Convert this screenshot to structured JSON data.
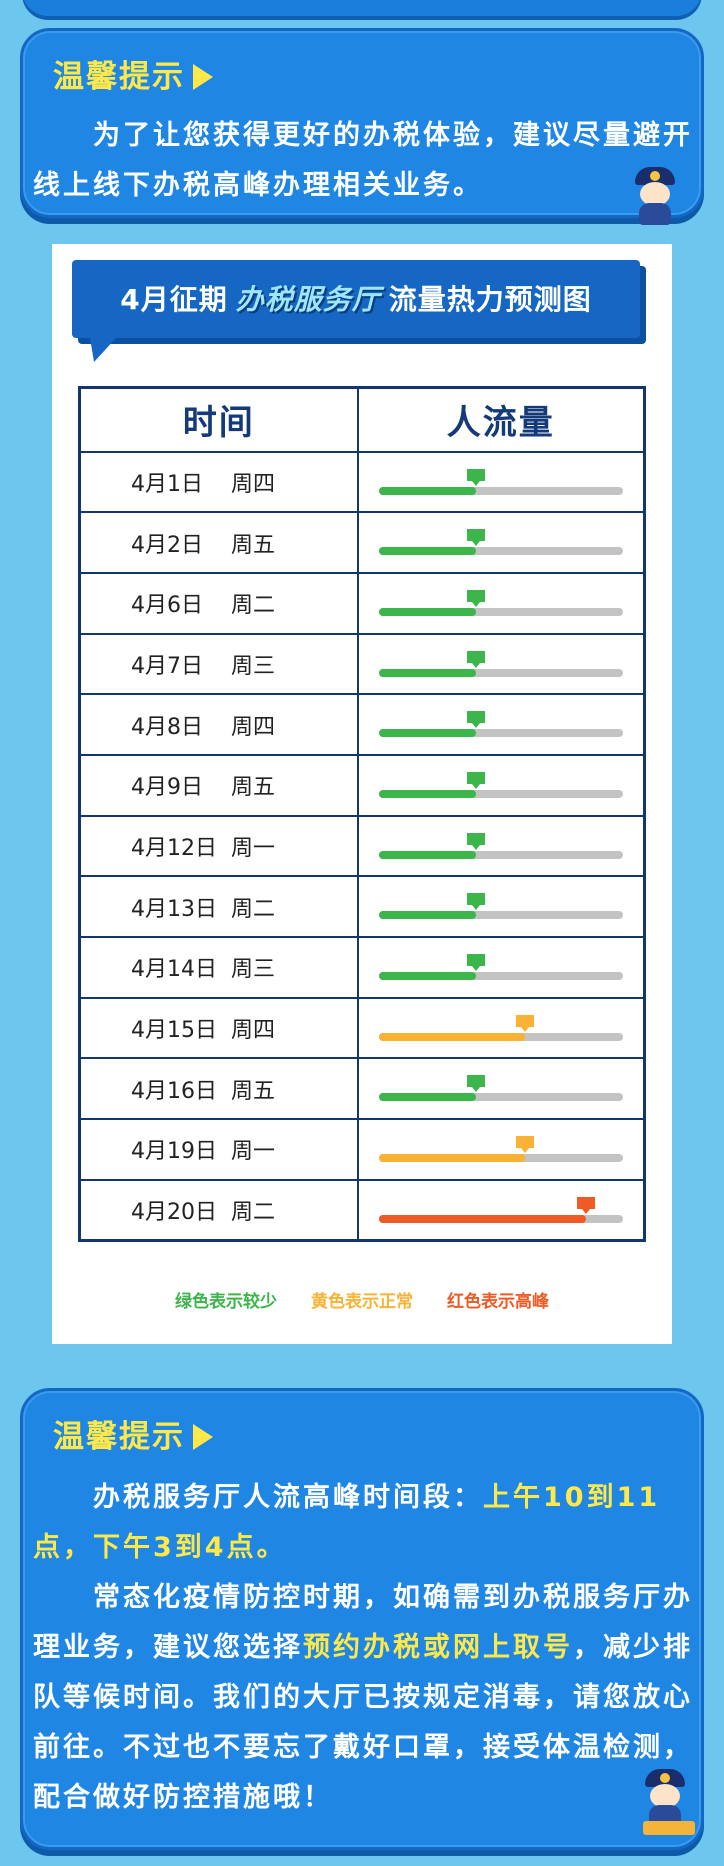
{
  "tip1": {
    "title": "温馨提示",
    "text": "　　为了让您获得更好的办税体验，建议尽量避开线上线下办税高峰办理相关业务。"
  },
  "chart": {
    "title_prefix": "4月征期",
    "title_emphasis": "办税服务厅",
    "title_suffix": "流量热力预测图",
    "header_time": "时间",
    "header_flow": "人流量",
    "colors": {
      "green": "#3cb54a",
      "yellow": "#f9b233",
      "red": "#f05a24"
    },
    "rows": [
      {
        "date": "4月1日",
        "weekday": "周四",
        "level": "green",
        "fill": 0.4
      },
      {
        "date": "4月2日",
        "weekday": "周五",
        "level": "green",
        "fill": 0.4
      },
      {
        "date": "4月6日",
        "weekday": "周二",
        "level": "green",
        "fill": 0.4
      },
      {
        "date": "4月7日",
        "weekday": "周三",
        "level": "green",
        "fill": 0.4
      },
      {
        "date": "4月8日",
        "weekday": "周四",
        "level": "green",
        "fill": 0.4
      },
      {
        "date": "4月9日",
        "weekday": "周五",
        "level": "green",
        "fill": 0.4
      },
      {
        "date": "4月12日",
        "weekday": "周一",
        "level": "green",
        "fill": 0.4
      },
      {
        "date": "4月13日",
        "weekday": "周二",
        "level": "green",
        "fill": 0.4
      },
      {
        "date": "4月14日",
        "weekday": "周三",
        "level": "green",
        "fill": 0.4
      },
      {
        "date": "4月15日",
        "weekday": "周四",
        "level": "yellow",
        "fill": 0.6
      },
      {
        "date": "4月16日",
        "weekday": "周五",
        "level": "green",
        "fill": 0.4
      },
      {
        "date": "4月19日",
        "weekday": "周一",
        "level": "yellow",
        "fill": 0.6
      },
      {
        "date": "4月20日",
        "weekday": "周二",
        "level": "red",
        "fill": 0.85
      }
    ],
    "legend": [
      {
        "label": "绿色表示较少",
        "color": "#3cb54a"
      },
      {
        "label": "黄色表示正常",
        "color": "#f9b233"
      },
      {
        "label": "红色表示高峰",
        "color": "#f05a24"
      }
    ]
  },
  "tip2": {
    "title": "温馨提示",
    "p1_a": "　　办税服务厅人流高峰时间段：",
    "p1_hl": "上午10到11点，下午3到4点。",
    "p2_a": "　　常态化疫情防控时期，如确需到办税服务厅办理业务，建议您选择",
    "p2_hl": "预约办税或网上取号",
    "p2_b": "，减少排队等候时间。我们的大厅已按规定消毒，请您放心前往。不过也不要忘了戴好口罩，接受体温检测，配合做好防控措施哦！"
  }
}
